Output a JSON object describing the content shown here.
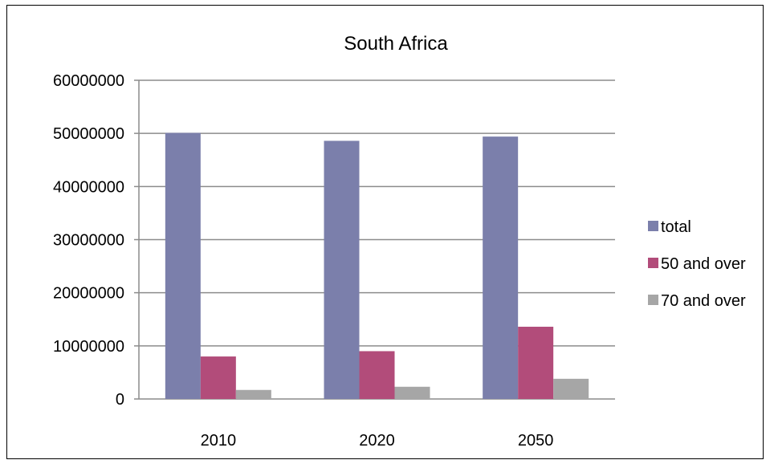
{
  "chart_data": {
    "type": "bar",
    "title": "South Africa",
    "xlabel": "",
    "ylabel": "",
    "categories": [
      "2010",
      "2020",
      "2050"
    ],
    "series": [
      {
        "name": "total",
        "color": "#7b7fab",
        "values": [
          50100000,
          48600000,
          49400000
        ]
      },
      {
        "name": "50 and over",
        "color": "#b24c7a",
        "values": [
          8000000,
          9000000,
          13600000
        ]
      },
      {
        "name": "70 and over",
        "color": "#a6a6a6",
        "values": [
          1700000,
          2300000,
          3800000
        ]
      }
    ],
    "ylim": [
      0,
      60000000
    ],
    "yticks": [
      "0",
      "10000000",
      "20000000",
      "30000000",
      "40000000",
      "50000000",
      "60000000"
    ],
    "grid": true,
    "legend_position": "right"
  }
}
